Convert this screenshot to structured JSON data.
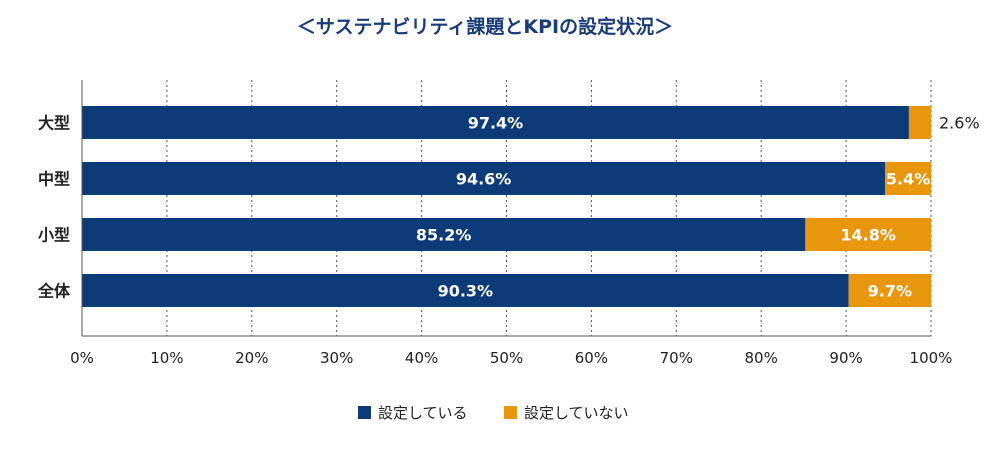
{
  "chart_data": {
    "type": "bar",
    "orientation": "horizontal",
    "stacked": true,
    "title": "＜サステナビリティ課題とKPIの設定状況＞",
    "categories": [
      "大型",
      "中型",
      "小型",
      "全体"
    ],
    "series": [
      {
        "name": "設定している",
        "values": [
          97.4,
          94.6,
          85.2,
          90.3
        ],
        "labels": [
          "97.4%",
          "94.6%",
          "85.2%",
          "90.3%"
        ],
        "color": "#0d3b78"
      },
      {
        "name": "設定していない",
        "values": [
          2.6,
          5.4,
          14.8,
          9.7
        ],
        "labels": [
          "2.6%",
          "5.4%",
          "14.8%",
          "9.7%"
        ],
        "color": "#e8960c"
      }
    ],
    "xlim": [
      0,
      100
    ],
    "xticks": [
      0,
      10,
      20,
      30,
      40,
      50,
      60,
      70,
      80,
      90,
      100
    ],
    "xtick_labels": [
      "0%",
      "10%",
      "20%",
      "30%",
      "40%",
      "50%",
      "60%",
      "70%",
      "80%",
      "90%",
      "100%"
    ],
    "grid": "vertical-dotted",
    "legend_position": "bottom-center"
  }
}
